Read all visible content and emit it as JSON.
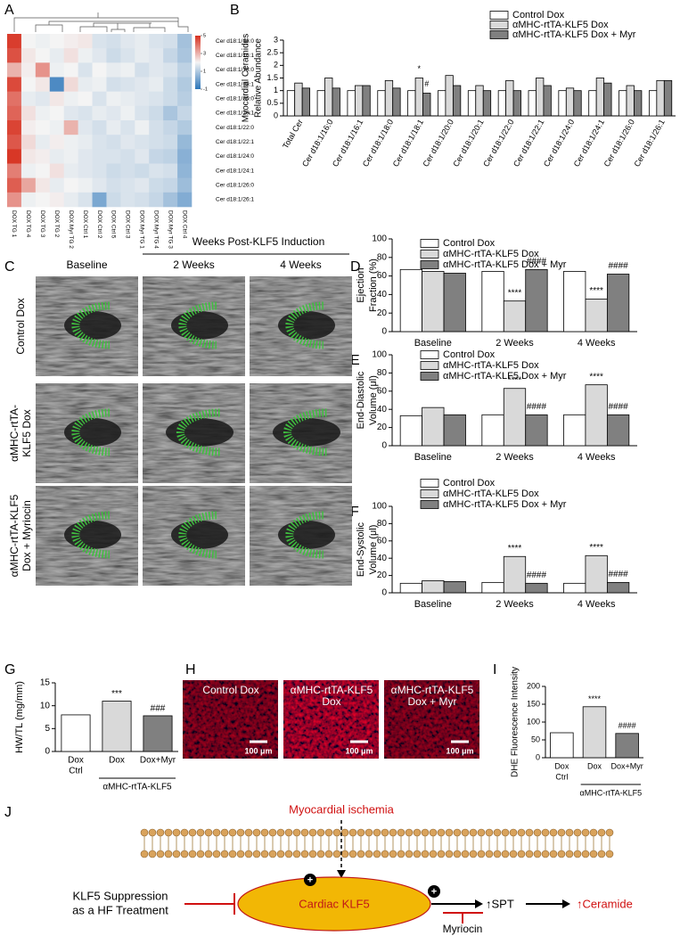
{
  "panel_letters": [
    "A",
    "B",
    "C",
    "D",
    "E",
    "F",
    "G",
    "H",
    "I",
    "J"
  ],
  "chart_data": [
    {
      "type": "heatmap",
      "rows": [
        "Cer d18:1/16:0",
        "Cer d18:1/16:1",
        "Cer d18:1/18:0",
        "Cer d18:1/18:1",
        "Cer d18:1/20:0",
        "Cer d18:1/20:1",
        "Cer d18:1/22:0",
        "Cer d18:1/22:1",
        "Cer d18:1/24:0",
        "Cer d18:1/24:1",
        "Cer d18:1/26:0",
        "Cer d18:1/26:1"
      ],
      "columns": [
        "DOX TG 1",
        "DOX TG 4",
        "DOX TG 3",
        "DOX TG 2",
        "DOX Myr TG 2",
        "DOX Ctrl 1",
        "DOX Ctrl 2",
        "DOX Ctrl 5",
        "DOX Ctrl 3",
        "DOX Myr TG 1",
        "DOX Myr TG 4",
        "DOX Myr TG 3",
        "DOX Ctrl 4"
      ],
      "values": [
        [
          4.8,
          2.0,
          1.9,
          2.0,
          2.1,
          2.2,
          1.6,
          1.5,
          1.7,
          1.8,
          1.6,
          1.5,
          0.8
        ],
        [
          4.5,
          2.2,
          2.0,
          1.8,
          2.3,
          1.9,
          1.7,
          1.4,
          1.6,
          1.8,
          1.7,
          1.3,
          0.9
        ],
        [
          3.0,
          2.1,
          3.5,
          1.9,
          2.0,
          1.6,
          2.0,
          1.8,
          1.9,
          1.5,
          1.7,
          1.6,
          1.2
        ],
        [
          4.6,
          2.0,
          2.2,
          -0.5,
          2.4,
          1.8,
          1.9,
          1.5,
          1.6,
          1.7,
          1.8,
          1.4,
          1.0
        ],
        [
          4.0,
          1.8,
          1.7,
          2.2,
          1.9,
          2.0,
          1.6,
          1.9,
          1.8,
          1.7,
          1.6,
          1.4,
          1.1
        ],
        [
          4.2,
          2.3,
          1.9,
          2.0,
          1.7,
          1.6,
          1.8,
          1.7,
          1.9,
          1.6,
          1.4,
          0.9,
          1.3
        ],
        [
          4.7,
          2.1,
          2.0,
          1.9,
          3.0,
          1.7,
          1.5,
          1.8,
          1.6,
          1.9,
          1.5,
          1.3,
          1.0
        ],
        [
          4.4,
          2.4,
          1.8,
          2.1,
          1.9,
          1.8,
          1.6,
          1.5,
          1.7,
          1.6,
          1.5,
          1.4,
          0.6
        ],
        [
          4.9,
          2.2,
          2.1,
          1.8,
          1.9,
          1.7,
          1.6,
          1.6,
          1.5,
          1.7,
          1.3,
          1.2,
          0.4
        ],
        [
          3.8,
          1.9,
          2.0,
          2.3,
          1.8,
          1.7,
          1.6,
          1.4,
          1.5,
          1.4,
          1.6,
          1.5,
          0.5
        ],
        [
          4.3,
          3.2,
          2.2,
          1.8,
          2.0,
          1.9,
          1.7,
          1.5,
          1.6,
          1.7,
          1.4,
          1.3,
          0.7
        ],
        [
          3.5,
          1.9,
          2.0,
          2.1,
          1.8,
          1.6,
          0.2,
          1.4,
          1.6,
          1.5,
          1.3,
          0.8,
          0.3
        ]
      ],
      "clim": [
        -1,
        5
      ],
      "colorbar_ticks": [
        -1,
        1,
        3,
        5
      ],
      "colors": [
        "#2b75b9",
        "#f4f4f4",
        "#d7301f"
      ]
    },
    {
      "type": "bar",
      "ylabel": [
        "Myocardial Ceramides",
        "Relative Abundance"
      ],
      "categories": [
        "Total Cer",
        "Cer d18:1/16:0",
        "Cer d18:1/16:1",
        "Cer d18:1/18:0",
        "Cer d18:1/18:1",
        "Cer d18:1/20:0",
        "Cer d18:1/20:1",
        "Cer d18:1/22:0",
        "Cer d18:1/22:1",
        "Cer d18:1/24:0",
        "Cer d18:1/24:1",
        "Cer d18:1/26:0",
        "Cer d18:1/26:1"
      ],
      "series": [
        {
          "name": "Control Dox",
          "color": "#ffffff",
          "values": [
            1.0,
            1.0,
            1.0,
            1.0,
            1.0,
            1.0,
            1.0,
            1.0,
            1.0,
            1.0,
            1.0,
            1.0,
            1.0
          ]
        },
        {
          "name": "αMHC-rtTA-KLF5 Dox",
          "color": "#d9d9d9",
          "values": [
            1.3,
            1.5,
            1.2,
            1.4,
            1.5,
            1.6,
            1.2,
            1.4,
            1.5,
            1.1,
            1.5,
            1.2,
            1.4
          ],
          "significance": [
            null,
            null,
            null,
            null,
            "*",
            null,
            null,
            null,
            null,
            null,
            null,
            null,
            null
          ]
        },
        {
          "name": "αMHC-rtTA-KLF5 Dox + Myr",
          "color": "#808080",
          "values": [
            1.1,
            1.1,
            1.2,
            1.1,
            0.9,
            1.2,
            1.0,
            1.0,
            1.2,
            1.0,
            1.3,
            1.0,
            1.4
          ],
          "significance": [
            null,
            null,
            null,
            null,
            "#",
            null,
            null,
            null,
            null,
            null,
            null,
            null,
            null
          ]
        }
      ],
      "ylim": [
        0,
        3
      ],
      "yticks": [
        0,
        0.5,
        1,
        1.5,
        2,
        2.5,
        3
      ]
    },
    {
      "type": "bar",
      "ylabel": [
        "Ejection",
        "Fraction (%)"
      ],
      "categories": [
        "Baseline",
        "2 Weeks",
        "4 Weeks"
      ],
      "series": [
        {
          "name": "Control Dox",
          "color": "#ffffff",
          "values": [
            67,
            65,
            65
          ]
        },
        {
          "name": "αMHC-rtTA-KLF5 Dox",
          "color": "#d9d9d9",
          "values": [
            65,
            33,
            35
          ],
          "significance": [
            null,
            "****",
            "****"
          ]
        },
        {
          "name": "αMHC-rtTA-KLF5 Dox + Myr",
          "color": "#808080",
          "values": [
            63,
            67,
            62
          ],
          "significance": [
            null,
            "####",
            "####"
          ]
        }
      ],
      "ylim": [
        0,
        100
      ],
      "yticks": [
        0,
        20,
        40,
        60,
        80,
        100
      ]
    },
    {
      "type": "bar",
      "ylabel": [
        "End-Diastolic",
        "Volume (μl)"
      ],
      "categories": [
        "Baseline",
        "2 Weeks",
        "4 Weeks"
      ],
      "series": [
        {
          "name": "Control Dox",
          "color": "#ffffff",
          "values": [
            33,
            34,
            34
          ]
        },
        {
          "name": "αMHC-rtTA-KLF5 Dox",
          "color": "#d9d9d9",
          "values": [
            42,
            63,
            67
          ],
          "significance": [
            null,
            "****",
            "****"
          ]
        },
        {
          "name": "αMHC-rtTA-KLF5 Dox + Myr",
          "color": "#808080",
          "values": [
            34,
            34,
            34
          ],
          "significance": [
            null,
            "####",
            "####"
          ]
        }
      ],
      "ylim": [
        0,
        100
      ],
      "yticks": [
        0,
        20,
        40,
        60,
        80,
        100
      ]
    },
    {
      "type": "bar",
      "ylabel": [
        "End-Systolic",
        "Volume (μl)"
      ],
      "categories": [
        "Baseline",
        "2 Weeks",
        "4 Weeks"
      ],
      "series": [
        {
          "name": "Control Dox",
          "color": "#ffffff",
          "values": [
            11,
            12,
            11
          ]
        },
        {
          "name": "αMHC-rtTA-KLF5 Dox",
          "color": "#d9d9d9",
          "values": [
            14,
            42,
            43
          ],
          "significance": [
            null,
            "****",
            "****"
          ]
        },
        {
          "name": "αMHC-rtTA-KLF5 Dox + Myr",
          "color": "#808080",
          "values": [
            13,
            11,
            12
          ],
          "significance": [
            null,
            "####",
            "####"
          ]
        }
      ],
      "ylim": [
        0,
        100
      ],
      "yticks": [
        0,
        20,
        40,
        60,
        80,
        100
      ]
    },
    {
      "type": "bar",
      "ylabel": [
        "HW/TL (mg/mm)"
      ],
      "categories": [
        [
          "Dox",
          "Ctrl"
        ],
        [
          "Dox"
        ],
        [
          "Dox+Myr"
        ]
      ],
      "group_label": "αMHC-rtTA-KLF5",
      "values": [
        8,
        11,
        7.8
      ],
      "colors": [
        "#ffffff",
        "#d9d9d9",
        "#808080"
      ],
      "significance": [
        null,
        "***",
        "###"
      ],
      "ylim": [
        0,
        15
      ],
      "yticks": [
        0,
        5,
        10,
        15
      ]
    },
    {
      "type": "bar",
      "ylabel": [
        "DHE Fluorescence Intensity"
      ],
      "categories": [
        [
          "Dox",
          "Ctrl"
        ],
        [
          "Dox"
        ],
        [
          "Dox+Myr"
        ]
      ],
      "group_label": "αMHC-rtTA-KLF5",
      "values": [
        70,
        143,
        68
      ],
      "colors": [
        "#ffffff",
        "#d9d9d9",
        "#808080"
      ],
      "significance": [
        null,
        "****",
        "####"
      ],
      "ylim": [
        0,
        200
      ],
      "yticks": [
        0,
        50,
        100,
        150,
        200
      ]
    }
  ],
  "echo": {
    "header": "Weeks Post-KLF5 Induction",
    "columns": [
      "Baseline",
      "2 Weeks",
      "4 Weeks"
    ],
    "rows": [
      [
        "Control Dox"
      ],
      [
        "αMHC-rtTA-",
        "KLF5 Dox"
      ],
      [
        "αMHC-rtTA-KLF5",
        "Dox + Myriocin"
      ]
    ]
  },
  "dhe": {
    "labels": [
      [
        "Control Dox"
      ],
      [
        "αMHC-rtTA-KLF5",
        "Dox"
      ],
      [
        "αMHC-rtTA-KLF5",
        "Dox + Myr"
      ]
    ],
    "scale_bar": "100 μm"
  },
  "diagram": {
    "stimulus": "Myocardial ischemia",
    "treatment": [
      "KLF5 Suppression",
      "as a HF Treatment"
    ],
    "center": "Cardiac KLF5",
    "enzyme": "↑SPT",
    "product": "↑Ceramide",
    "inhibitor": "Myriocin",
    "plus_signs": [
      "+",
      "+"
    ]
  }
}
